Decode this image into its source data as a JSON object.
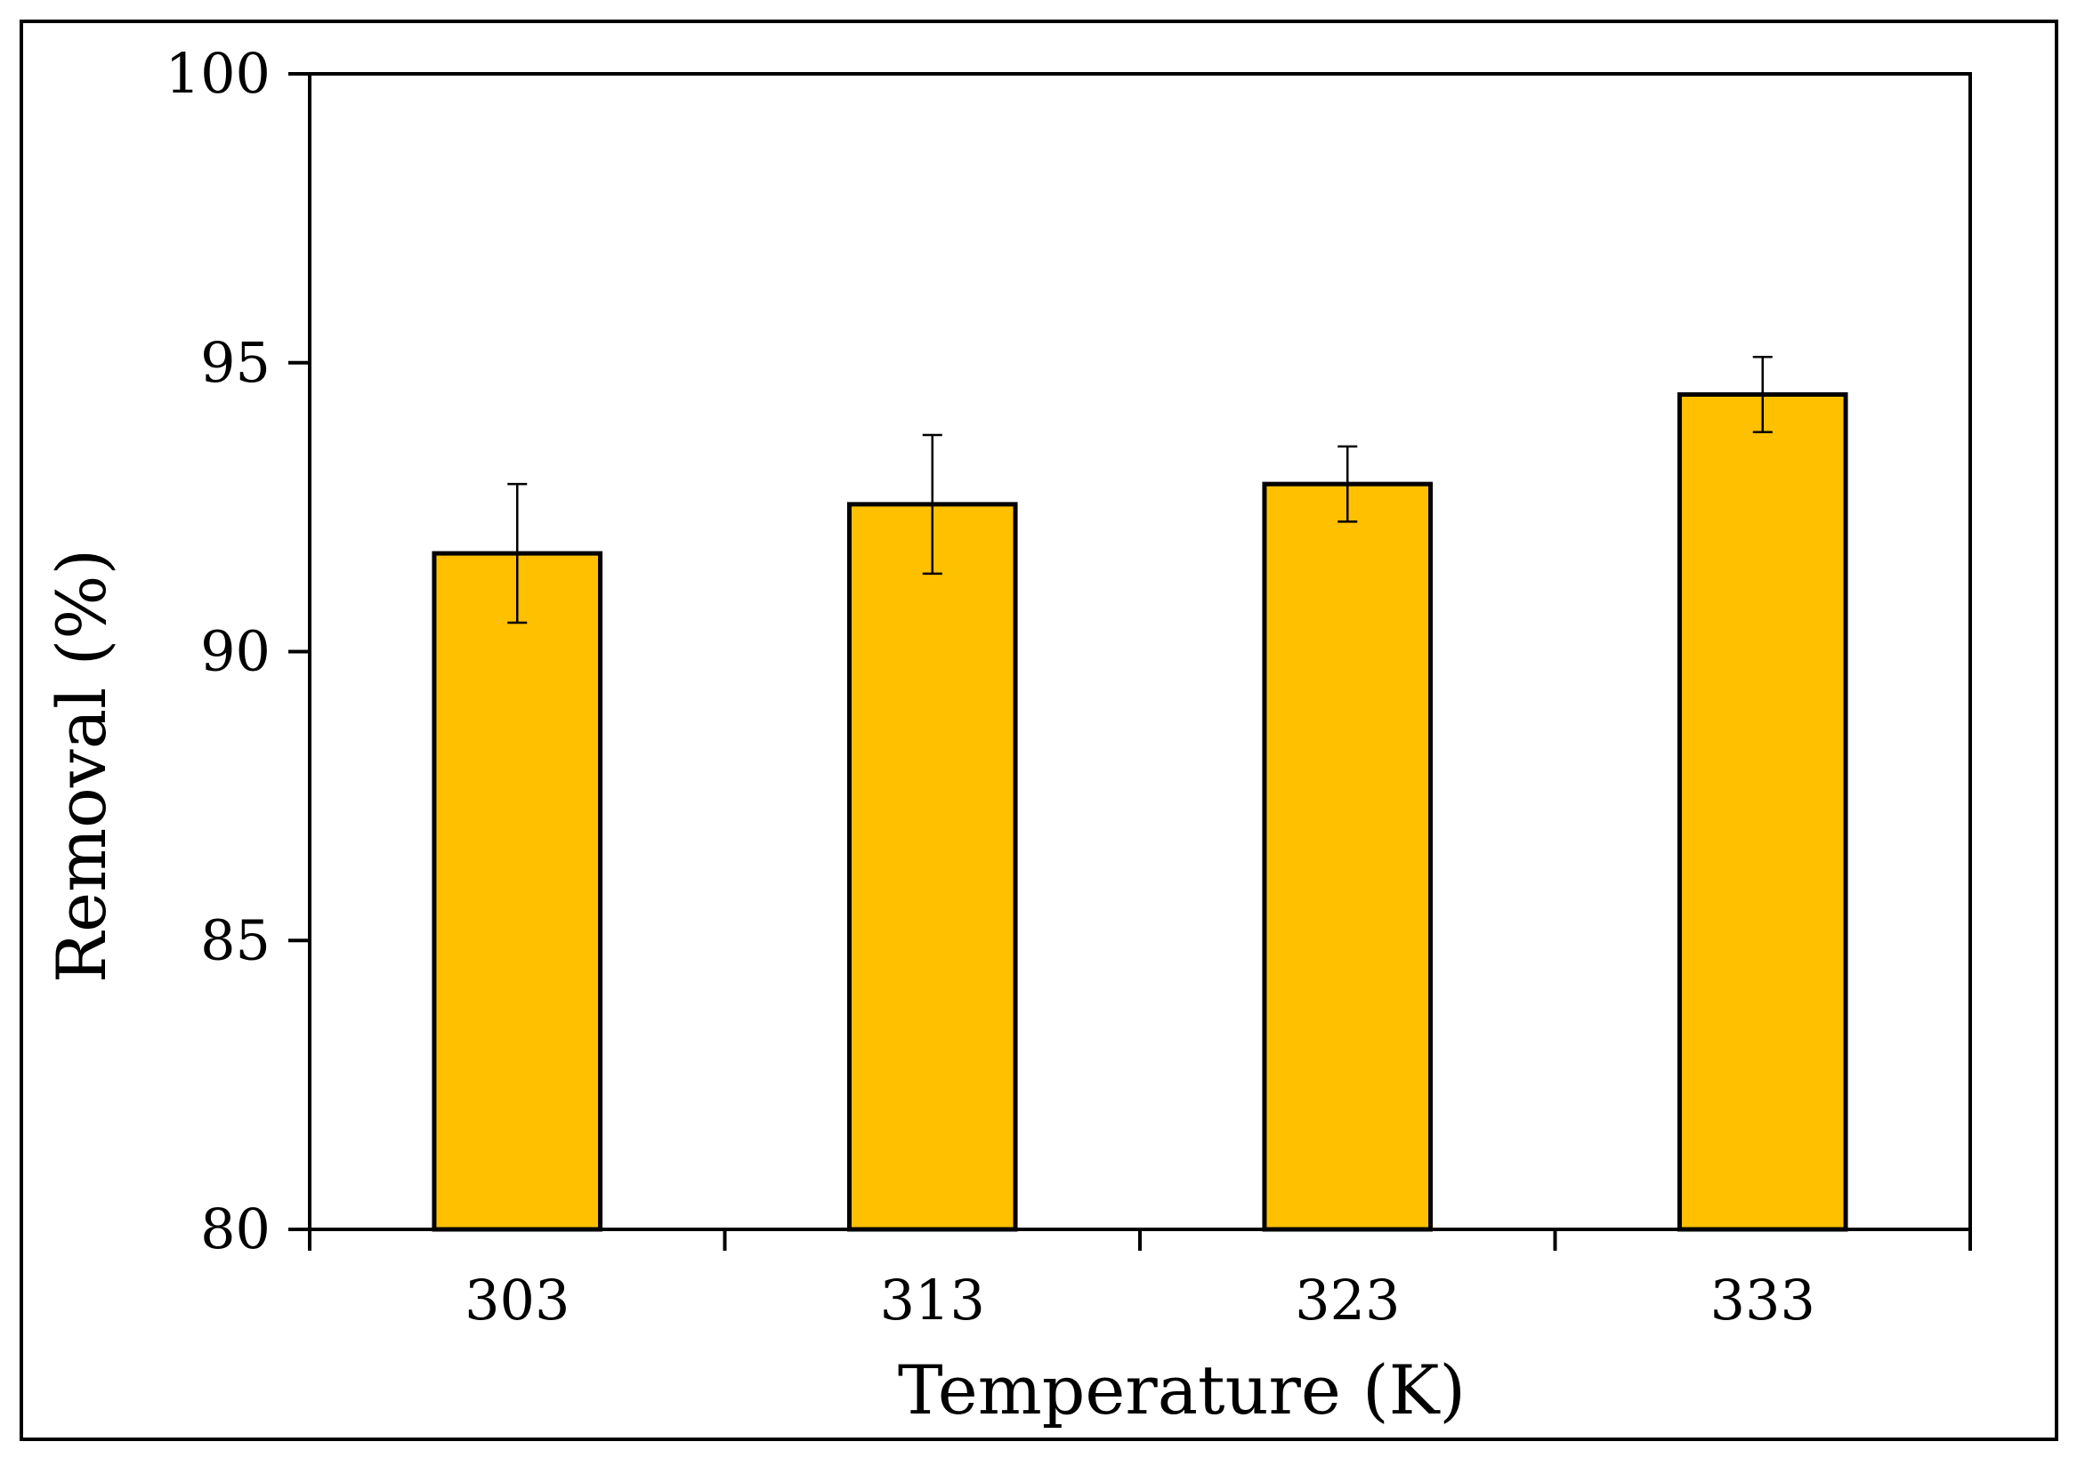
{
  "chart_data": {
    "type": "bar",
    "title": "",
    "xlabel": "Temperature (K)",
    "ylabel": "Removal (%)",
    "categories": [
      "303",
      "313",
      "323",
      "333"
    ],
    "values": [
      91.7,
      92.55,
      92.9,
      94.45
    ],
    "error": [
      1.2,
      1.2,
      0.65,
      0.65
    ],
    "ylim": [
      80,
      100
    ],
    "yticks": [
      80,
      85,
      90,
      95,
      100
    ],
    "grid": false,
    "bar_color": "#FFC000",
    "bar_edge_color": "#000000"
  }
}
